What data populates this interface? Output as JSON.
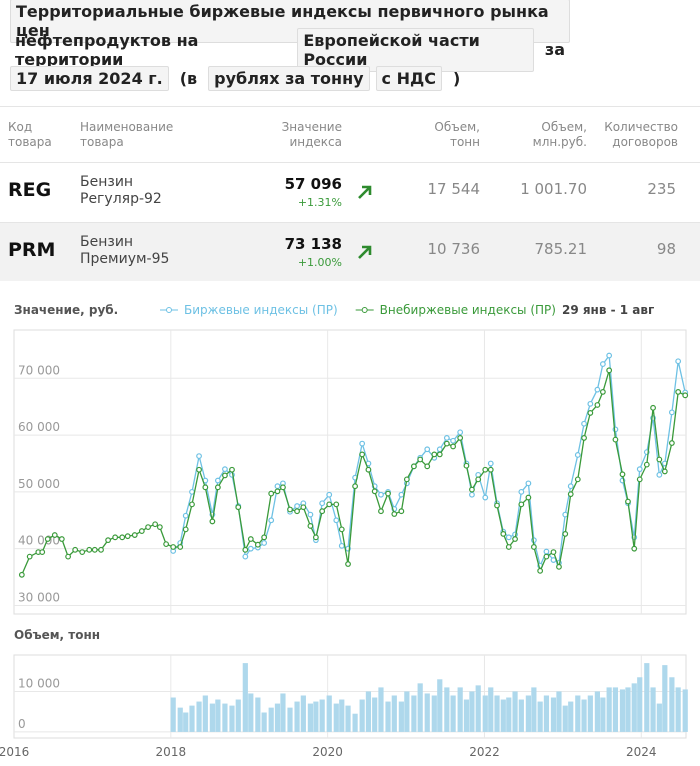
{
  "header": {
    "title_lines": [
      [
        {
          "text": "Территориальные биржевые индексы первичного рынка цен",
          "boxed": true
        }
      ],
      [
        {
          "text": "нефтепродуктов на территории",
          "boxed": false
        },
        {
          "text": "Европейской части России",
          "boxed": true
        },
        {
          "text": "за",
          "boxed": false
        }
      ],
      [
        {
          "text": "17 июля 2024 г.",
          "boxed": true
        },
        {
          "text": "(в",
          "boxed": false
        },
        {
          "text": "рублях за тонну",
          "boxed": true
        },
        {
          "text": "с НДС",
          "boxed": true
        },
        {
          "text": ")",
          "boxed": false
        }
      ]
    ]
  },
  "table": {
    "headers": [
      "Код товара",
      "Наименование товара",
      "Значение индекса",
      "Объем, тонн",
      "Объем, млн.руб.",
      "Количество договоров"
    ],
    "rows": [
      [
        "REG",
        "Бензин Регуляр-92",
        "57 096",
        "+1.31%",
        "17 544",
        "1 001.70",
        "235"
      ],
      [
        "PRM",
        "Бензин Премиум-95",
        "73 138",
        "+1.00%",
        "10 736",
        "785.21",
        "98"
      ]
    ]
  },
  "chart_data": [
    {
      "type": "line",
      "ylabel": "Значение, руб.",
      "date_range": "29 янв - 1 авг",
      "xlim": [
        2016,
        2024.57
      ],
      "ylim": [
        28500,
        78500
      ],
      "yticks": [
        {
          "value": 30000,
          "label": "30 000"
        },
        {
          "value": 40000,
          "label": "40 000"
        },
        {
          "value": 50000,
          "label": "50 000"
        },
        {
          "value": 60000,
          "label": "60 000"
        },
        {
          "value": 70000,
          "label": "70 000"
        }
      ],
      "grid": true,
      "x": [
        2016.1,
        2016.2,
        2016.31,
        2016.36,
        2016.43,
        2016.52,
        2016.61,
        2016.69,
        2016.78,
        2016.87,
        2016.96,
        2017.03,
        2017.11,
        2017.2,
        2017.29,
        2017.38,
        2017.45,
        2017.54,
        2017.63,
        2017.71,
        2017.8,
        2017.86,
        2017.94,
        2018.03,
        2018.12,
        2018.19,
        2018.27,
        2018.36,
        2018.44,
        2018.53,
        2018.6,
        2018.69,
        2018.78,
        2018.86,
        2018.95,
        2019.02,
        2019.11,
        2019.19,
        2019.28,
        2019.36,
        2019.43,
        2019.52,
        2019.61,
        2019.69,
        2019.78,
        2019.85,
        2019.93,
        2020.02,
        2020.11,
        2020.18,
        2020.26,
        2020.35,
        2020.44,
        2020.52,
        2020.6,
        2020.68,
        2020.77,
        2020.85,
        2020.94,
        2021.01,
        2021.1,
        2021.18,
        2021.27,
        2021.36,
        2021.43,
        2021.52,
        2021.6,
        2021.69,
        2021.77,
        2021.84,
        2021.92,
        2022.01,
        2022.08,
        2022.16,
        2022.24,
        2022.31,
        2022.39,
        2022.47,
        2022.56,
        2022.63,
        2022.71,
        2022.79,
        2022.88,
        2022.95,
        2023.03,
        2023.1,
        2023.19,
        2023.27,
        2023.35,
        2023.44,
        2023.51,
        2023.59,
        2023.67,
        2023.76,
        2023.83,
        2023.91,
        2023.98,
        2024.07,
        2024.15,
        2024.23,
        2024.3,
        2024.39,
        2024.47,
        2024.56
      ],
      "series": [
        {
          "name": "Биржевые индексы (ПР)",
          "color": "#6ec1e4",
          "values": [
            null,
            null,
            null,
            null,
            null,
            null,
            null,
            null,
            null,
            null,
            null,
            null,
            null,
            null,
            null,
            null,
            null,
            null,
            null,
            null,
            null,
            null,
            null,
            39600,
            41000,
            45800,
            50000,
            56300,
            52000,
            46000,
            52000,
            54000,
            53000,
            47500,
            38600,
            40000,
            40200,
            41000,
            45000,
            51000,
            51500,
            46500,
            47500,
            48000,
            46000,
            41500,
            48000,
            49500,
            45000,
            40500,
            40000,
            52500,
            58500,
            55000,
            51000,
            49500,
            50000,
            47000,
            49500,
            51500,
            54500,
            56000,
            57500,
            56000,
            57500,
            59500,
            59000,
            60500,
            55000,
            49500,
            53000,
            49000,
            55000,
            48000,
            43000,
            42000,
            42500,
            50000,
            51500,
            41500,
            37000,
            39500,
            38000,
            37500,
            46000,
            51000,
            56500,
            62000,
            65500,
            68000,
            72500,
            74000,
            61000,
            52000,
            48000,
            42000,
            54000,
            57000,
            63000,
            53000,
            55000,
            64000,
            73000,
            67500
          ]
        },
        {
          "name": "Внебиржевые индексы (ПР)",
          "color": "#3a9a3a",
          "values": [
            35400,
            38600,
            39400,
            39400,
            41700,
            42400,
            41700,
            38600,
            39800,
            39400,
            39800,
            39800,
            39800,
            41500,
            42000,
            42000,
            42200,
            42400,
            43100,
            43800,
            44300,
            43800,
            40800,
            40300,
            40300,
            43400,
            47800,
            53900,
            50800,
            44800,
            50800,
            52900,
            53900,
            47300,
            39800,
            41700,
            40700,
            42000,
            49700,
            50100,
            50800,
            46900,
            46600,
            47300,
            44000,
            42000,
            46600,
            47800,
            47800,
            43400,
            37300,
            51000,
            56600,
            53900,
            50100,
            46600,
            49700,
            46100,
            46600,
            52200,
            54500,
            55700,
            54500,
            56600,
            56600,
            58500,
            58000,
            59500,
            54600,
            50400,
            52200,
            53900,
            53900,
            47600,
            42600,
            40300,
            41700,
            47800,
            49000,
            40300,
            36100,
            38600,
            39400,
            36800,
            42600,
            49600,
            52200,
            59500,
            63900,
            65300,
            67600,
            71400,
            59200,
            53100,
            48300,
            40000,
            52200,
            54800,
            64800,
            55700,
            53600,
            58600,
            67600,
            67000
          ]
        }
      ]
    },
    {
      "type": "bar",
      "ylabel": "Объем, тонн",
      "color": "#aed8ec",
      "xlim": [
        2016,
        2024.57
      ],
      "ylim": [
        -1500,
        19000
      ],
      "yticks": [
        0,
        {
          "value": 10000,
          "label": "10 000"
        }
      ],
      "xticks": [
        2016,
        2018,
        2020,
        2022,
        2024
      ],
      "grid": true,
      "x": [
        2018.03,
        2018.12,
        2018.19,
        2018.27,
        2018.36,
        2018.44,
        2018.53,
        2018.6,
        2018.69,
        2018.78,
        2018.86,
        2018.95,
        2019.02,
        2019.11,
        2019.19,
        2019.28,
        2019.36,
        2019.43,
        2019.52,
        2019.61,
        2019.69,
        2019.78,
        2019.85,
        2019.93,
        2020.02,
        2020.11,
        2020.18,
        2020.26,
        2020.35,
        2020.44,
        2020.52,
        2020.6,
        2020.68,
        2020.77,
        2020.85,
        2020.94,
        2021.01,
        2021.1,
        2021.18,
        2021.27,
        2021.36,
        2021.43,
        2021.52,
        2021.6,
        2021.69,
        2021.77,
        2021.84,
        2021.92,
        2022.01,
        2022.08,
        2022.16,
        2022.24,
        2022.31,
        2022.39,
        2022.47,
        2022.56,
        2022.63,
        2022.71,
        2022.79,
        2022.88,
        2022.95,
        2023.03,
        2023.1,
        2023.19,
        2023.27,
        2023.35,
        2023.44,
        2023.51,
        2023.59,
        2023.67,
        2023.76,
        2023.83,
        2023.91,
        2023.98,
        2024.07,
        2024.15,
        2024.23,
        2024.3,
        2024.39,
        2024.47,
        2024.56
      ],
      "values": [
        8500,
        6000,
        4800,
        6500,
        7500,
        9000,
        7000,
        8000,
        7000,
        6500,
        8000,
        17000,
        9500,
        8500,
        4800,
        6000,
        7000,
        9500,
        6000,
        7500,
        9000,
        7000,
        7500,
        8000,
        9000,
        7000,
        8000,
        6500,
        4500,
        8000,
        10000,
        8500,
        11000,
        7500,
        9000,
        7500,
        10000,
        9000,
        12000,
        9500,
        9000,
        13000,
        11000,
        9000,
        11000,
        8000,
        10000,
        11500,
        9000,
        11000,
        9000,
        8000,
        8500,
        10000,
        8000,
        9000,
        11000,
        7500,
        9000,
        8500,
        10000,
        6500,
        7500,
        9000,
        8000,
        9000,
        10000,
        8500,
        11000,
        11000,
        10500,
        11000,
        12000,
        13500,
        17000,
        11000,
        7000,
        16500,
        13500,
        11000,
        10500
      ]
    }
  ]
}
